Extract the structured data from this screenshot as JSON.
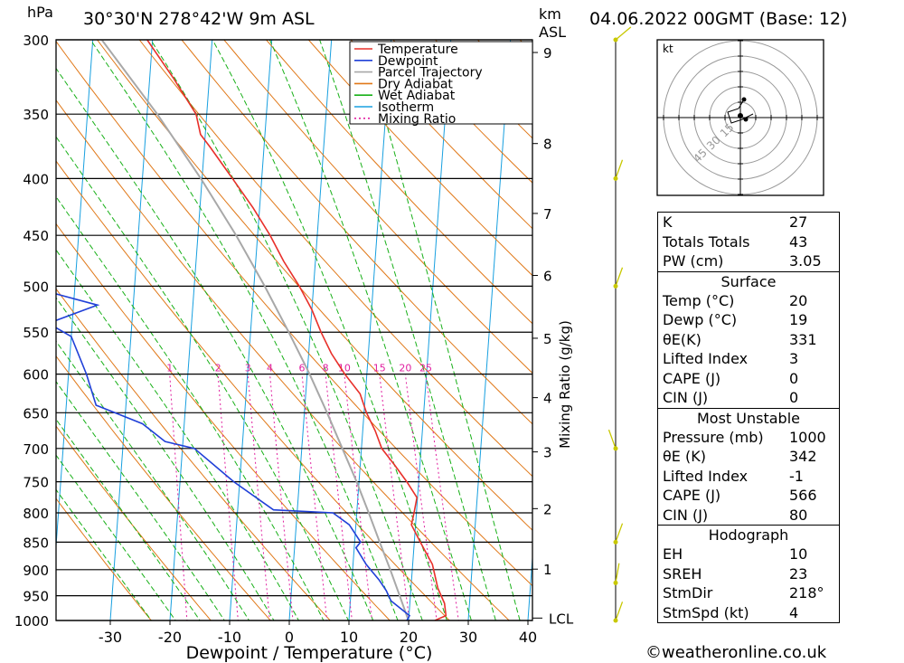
{
  "header": {
    "pressure_unit": "hPa",
    "location": "30°30'N  278°42'W  9m  ASL",
    "height_unit_km": "km",
    "height_unit_asl": "ASL",
    "datetime": "04.06.2022  00GMT  (Base: 12)"
  },
  "credit": "©weatheronline.co.uk",
  "colors": {
    "temperature": "#e8302a",
    "dewpoint": "#2040d8",
    "parcel": "#a8a8a8",
    "dry_adiabat": "#e07818",
    "wet_adiabat": "#18b018",
    "isotherm": "#18a0e0",
    "mixing_ratio": "#e020a0",
    "wind": "#c8c800"
  },
  "chart_data": {
    "type": "skew-t log-p",
    "xlabel": "Dewpoint / Temperature (°C)",
    "right_axis_label": "Mixing Ratio (g/kg)",
    "pressure_levels": [
      300,
      350,
      400,
      450,
      500,
      550,
      600,
      650,
      700,
      750,
      800,
      850,
      900,
      950,
      1000
    ],
    "temp_ticks": [
      -30,
      -20,
      -10,
      0,
      10,
      20,
      30,
      40
    ],
    "height_ticks_km": [
      {
        "label": "9",
        "p": 308
      },
      {
        "label": "8",
        "p": 372
      },
      {
        "label": "7",
        "p": 430
      },
      {
        "label": "6",
        "p": 489
      },
      {
        "label": "5",
        "p": 557
      },
      {
        "label": "4",
        "p": 630
      },
      {
        "label": "3",
        "p": 705
      },
      {
        "label": "2",
        "p": 793
      },
      {
        "label": "1",
        "p": 899
      }
    ],
    "lcl_label": "LCL",
    "lcl_pressure": 995,
    "mixing_ratio_labels": [
      "1",
      "2",
      "3",
      "4",
      "6",
      "8",
      "10",
      "15",
      "20",
      "25"
    ],
    "legend": [
      "Temperature",
      "Dewpoint",
      "Parcel Trajectory",
      "Dry Adiabat",
      "Wet Adiabat",
      "Isotherm",
      "Mixing Ratio"
    ],
    "temperature_profile": [
      {
        "p": 1000,
        "t": 24.4
      },
      {
        "p": 990,
        "t": 26.2
      },
      {
        "p": 965,
        "t": 25.8
      },
      {
        "p": 935,
        "t": 24.5
      },
      {
        "p": 890,
        "t": 23.3
      },
      {
        "p": 850,
        "t": 21.0
      },
      {
        "p": 820,
        "t": 19.3
      },
      {
        "p": 800,
        "t": 19.6
      },
      {
        "p": 775,
        "t": 19.9
      },
      {
        "p": 750,
        "t": 18.0
      },
      {
        "p": 725,
        "t": 15.8
      },
      {
        "p": 700,
        "t": 13.4
      },
      {
        "p": 675,
        "t": 12.1
      },
      {
        "p": 650,
        "t": 10.4
      },
      {
        "p": 625,
        "t": 9.1
      },
      {
        "p": 600,
        "t": 6.3
      },
      {
        "p": 575,
        "t": 3.8
      },
      {
        "p": 550,
        "t": 1.8
      },
      {
        "p": 525,
        "t": 0.0
      },
      {
        "p": 500,
        "t": -2.4
      },
      {
        "p": 475,
        "t": -5.3
      },
      {
        "p": 450,
        "t": -7.9
      },
      {
        "p": 425,
        "t": -11.1
      },
      {
        "p": 400,
        "t": -14.9
      },
      {
        "p": 375,
        "t": -19.0
      },
      {
        "p": 365,
        "t": -20.8
      },
      {
        "p": 350,
        "t": -21.8
      },
      {
        "p": 325,
        "t": -26.0
      },
      {
        "p": 300,
        "t": -30.9
      }
    ],
    "dewpoint_profile": [
      {
        "p": 1000,
        "t": 19.7
      },
      {
        "p": 990,
        "t": 20.1
      },
      {
        "p": 960,
        "t": 16.8
      },
      {
        "p": 940,
        "t": 15.9
      },
      {
        "p": 920,
        "t": 14.6
      },
      {
        "p": 890,
        "t": 12.2
      },
      {
        "p": 860,
        "t": 10.3
      },
      {
        "p": 850,
        "t": 11.0
      },
      {
        "p": 820,
        "t": 8.9
      },
      {
        "p": 800,
        "t": 6.0
      },
      {
        "p": 795,
        "t": -4.0
      },
      {
        "p": 750,
        "t": -11.0
      },
      {
        "p": 700,
        "t": -18.0
      },
      {
        "p": 690,
        "t": -23.0
      },
      {
        "p": 665,
        "t": -27.0
      },
      {
        "p": 640,
        "t": -35.0
      },
      {
        "p": 600,
        "t": -37.0
      },
      {
        "p": 555,
        "t": -40.0
      },
      {
        "p": 540,
        "t": -44.0
      },
      {
        "p": 520,
        "t": -36.0
      },
      {
        "p": 500,
        "t": -48.0
      },
      {
        "p": 465,
        "t": -53.0
      },
      {
        "p": 440,
        "t": -55.0
      },
      {
        "p": 400,
        "t": -58.0
      },
      {
        "p": 395,
        "t": -51.0
      },
      {
        "p": 385,
        "t": -51.0
      },
      {
        "p": 378,
        "t": -61.0
      },
      {
        "p": 365,
        "t": -56.0
      },
      {
        "p": 362,
        "t": -55.0
      },
      {
        "p": 358,
        "t": -76.0
      },
      {
        "p": 345,
        "t": -80.0
      },
      {
        "p": 330,
        "t": -84.0
      },
      {
        "p": 315,
        "t": -85.0
      },
      {
        "p": 300,
        "t": -87.0
      }
    ],
    "parcel_profile": [
      {
        "p": 995,
        "t": 19.8
      },
      {
        "p": 950,
        "t": 18.2
      },
      {
        "p": 900,
        "t": 16.3
      },
      {
        "p": 850,
        "t": 14.2
      },
      {
        "p": 800,
        "t": 12.0
      },
      {
        "p": 750,
        "t": 9.6
      },
      {
        "p": 700,
        "t": 6.8
      },
      {
        "p": 650,
        "t": 3.8
      },
      {
        "p": 600,
        "t": 0.4
      },
      {
        "p": 550,
        "t": -3.6
      },
      {
        "p": 500,
        "t": -8.2
      },
      {
        "p": 450,
        "t": -13.6
      },
      {
        "p": 400,
        "t": -20.2
      },
      {
        "p": 350,
        "t": -28.3
      },
      {
        "p": 300,
        "t": -38.5
      }
    ],
    "wind_levels_hpa": [
      1000,
      925,
      850,
      700,
      500,
      400,
      300
    ],
    "hodograph": {
      "unit_label": "kt",
      "ring_labels": [
        "15",
        "30",
        "45"
      ]
    }
  },
  "indices": {
    "rows": [
      {
        "label": "K",
        "value": "27"
      },
      {
        "label": "Totals Totals",
        "value": "43"
      },
      {
        "label": "PW (cm)",
        "value": "3.05"
      }
    ]
  },
  "surface": {
    "title": "Surface",
    "rows": [
      {
        "label": "Temp (°C)",
        "value": "20"
      },
      {
        "label": "Dewp (°C)",
        "value": "19"
      },
      {
        "label": "θE(K)",
        "value": "331"
      },
      {
        "label": "Lifted Index",
        "value": "3"
      },
      {
        "label": "CAPE (J)",
        "value": "0"
      },
      {
        "label": "CIN (J)",
        "value": "0"
      }
    ]
  },
  "most_unstable": {
    "title": "Most Unstable",
    "rows": [
      {
        "label": "Pressure (mb)",
        "value": "1000"
      },
      {
        "label": "θE (K)",
        "value": "342"
      },
      {
        "label": "Lifted Index",
        "value": "-1"
      },
      {
        "label": "CAPE (J)",
        "value": "566"
      },
      {
        "label": "CIN (J)",
        "value": "80"
      }
    ]
  },
  "hodograph_table": {
    "title": "Hodograph",
    "rows": [
      {
        "label": "EH",
        "value": "10"
      },
      {
        "label": "SREH",
        "value": "23"
      },
      {
        "label": "StmDir",
        "value": "218°"
      },
      {
        "label": "StmSpd (kt)",
        "value": "4"
      }
    ]
  }
}
